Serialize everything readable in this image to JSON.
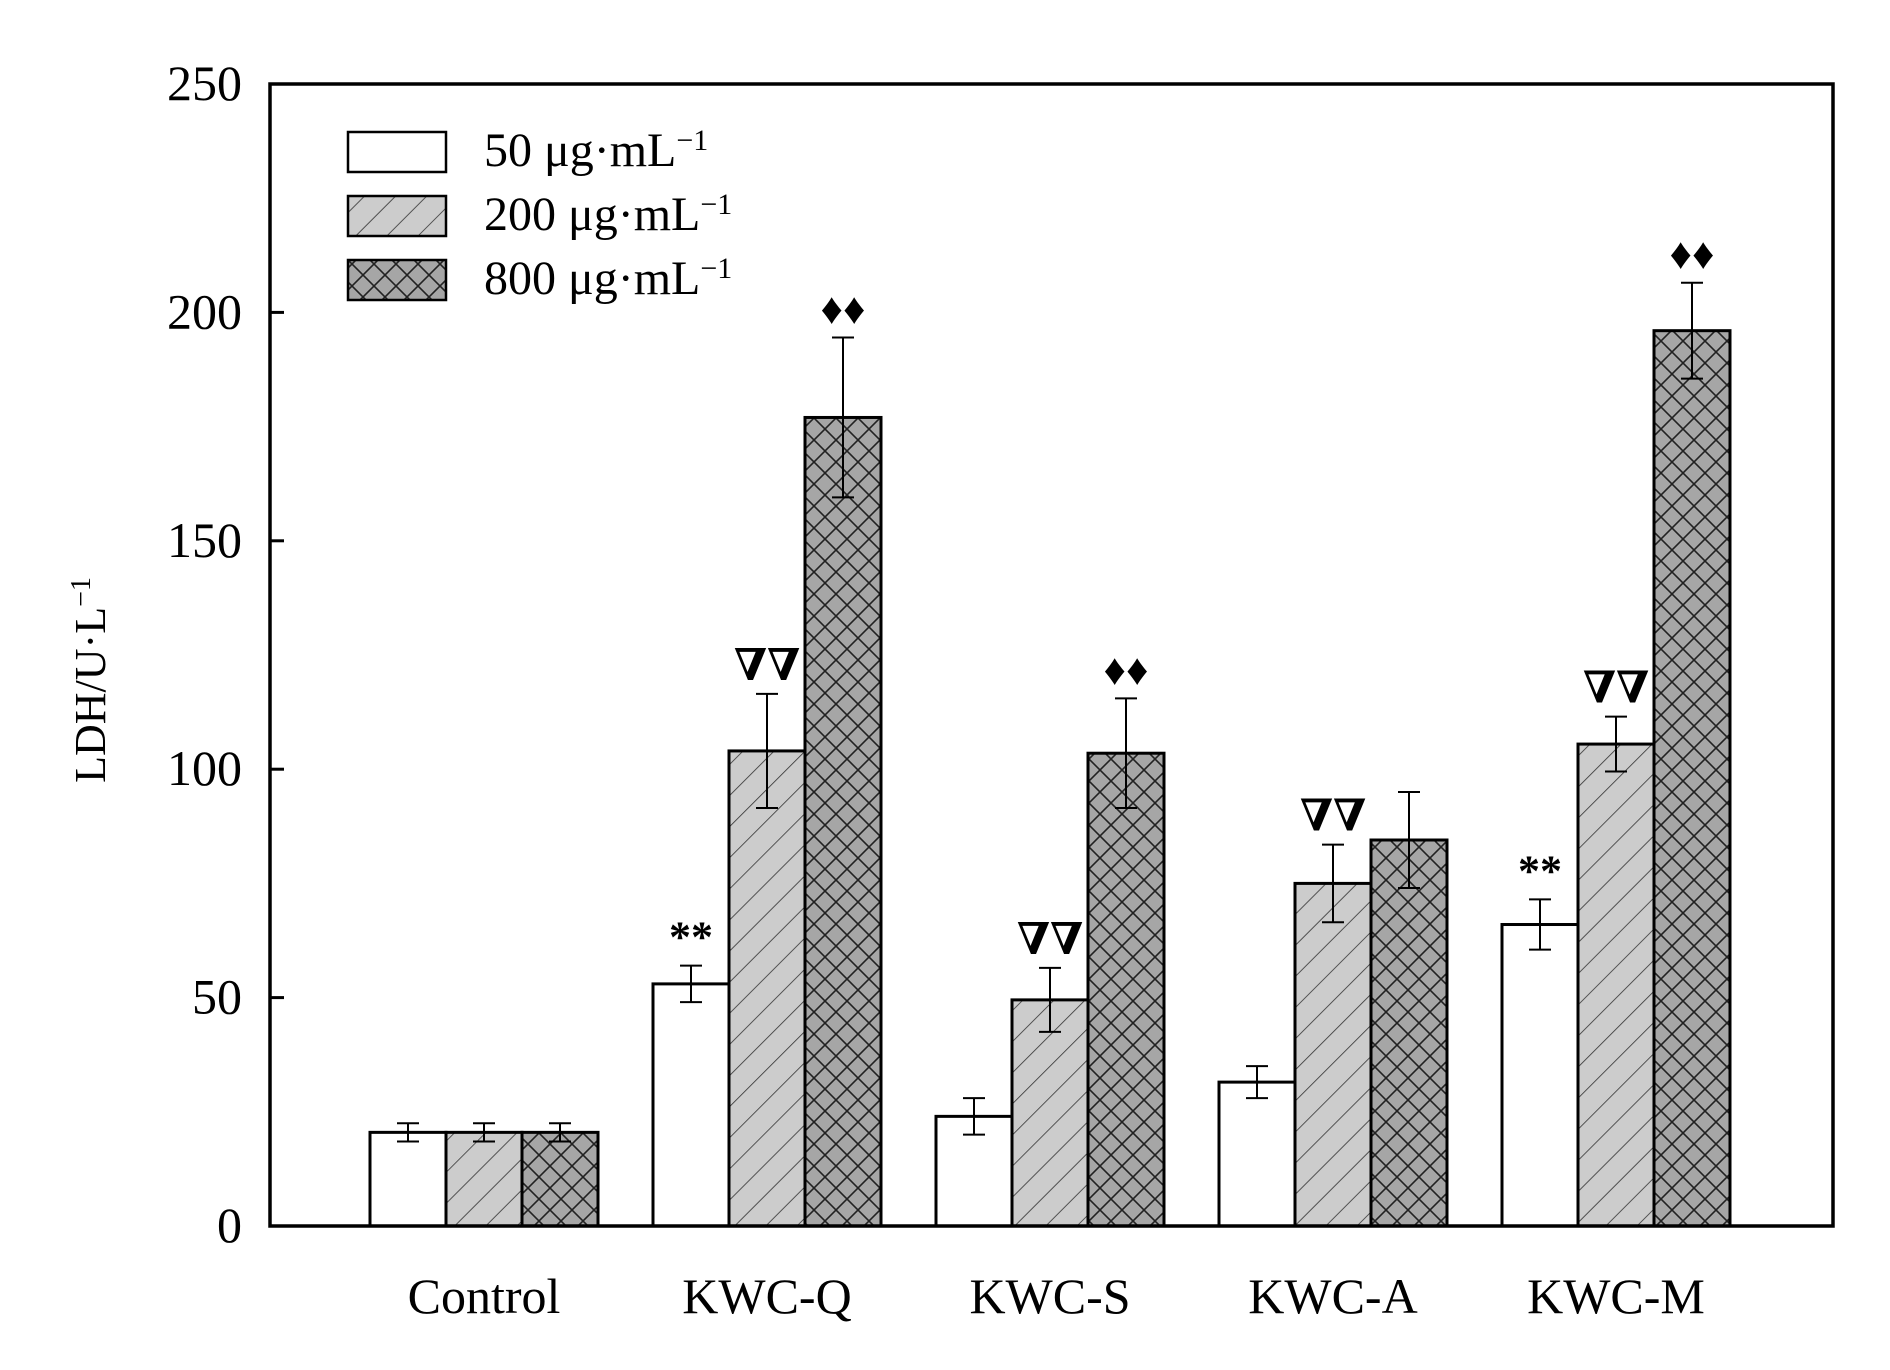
{
  "chart_data": {
    "type": "bar",
    "categories": [
      "Control",
      "KWC-Q",
      "KWC-S",
      "KWC-A",
      "KWC-M"
    ],
    "series": [
      {
        "name": "50 μg·mL",
        "name_sup": "−1",
        "pattern": "none",
        "fill": "#ffffff",
        "values": [
          20.5,
          53,
          24,
          31.5,
          66
        ],
        "errors": [
          2,
          4,
          4,
          3.5,
          5.5
        ],
        "marks": [
          "",
          "**",
          "",
          "",
          "**"
        ]
      },
      {
        "name": "200 μg·mL",
        "name_sup": "−1",
        "pattern": "diagonal-hatch",
        "fill": "#cccccc",
        "values": [
          20.5,
          104,
          49.5,
          75,
          105.5
        ],
        "errors": [
          2,
          12.5,
          7,
          8.5,
          6
        ],
        "marks": [
          "",
          "∇∇",
          "∇∇",
          "∇∇",
          "∇∇"
        ]
      },
      {
        "name": "800 μg·mL",
        "name_sup": "−1",
        "pattern": "cross-hatch",
        "fill": "#a6a6a6",
        "values": [
          20.5,
          177,
          103.5,
          84.5,
          196
        ],
        "errors": [
          2,
          17.5,
          12,
          10.5,
          10.5
        ],
        "marks": [
          "",
          "♦♦",
          "♦♦",
          "",
          "♦♦"
        ]
      }
    ],
    "ylabel": "LDH/U·L",
    "ylabel_sup": "−1",
    "xlabel": "",
    "ylim": [
      0,
      250
    ],
    "yticks": [
      0,
      50,
      100,
      150,
      200,
      250
    ],
    "grid": false,
    "legend_position": "top-left"
  }
}
